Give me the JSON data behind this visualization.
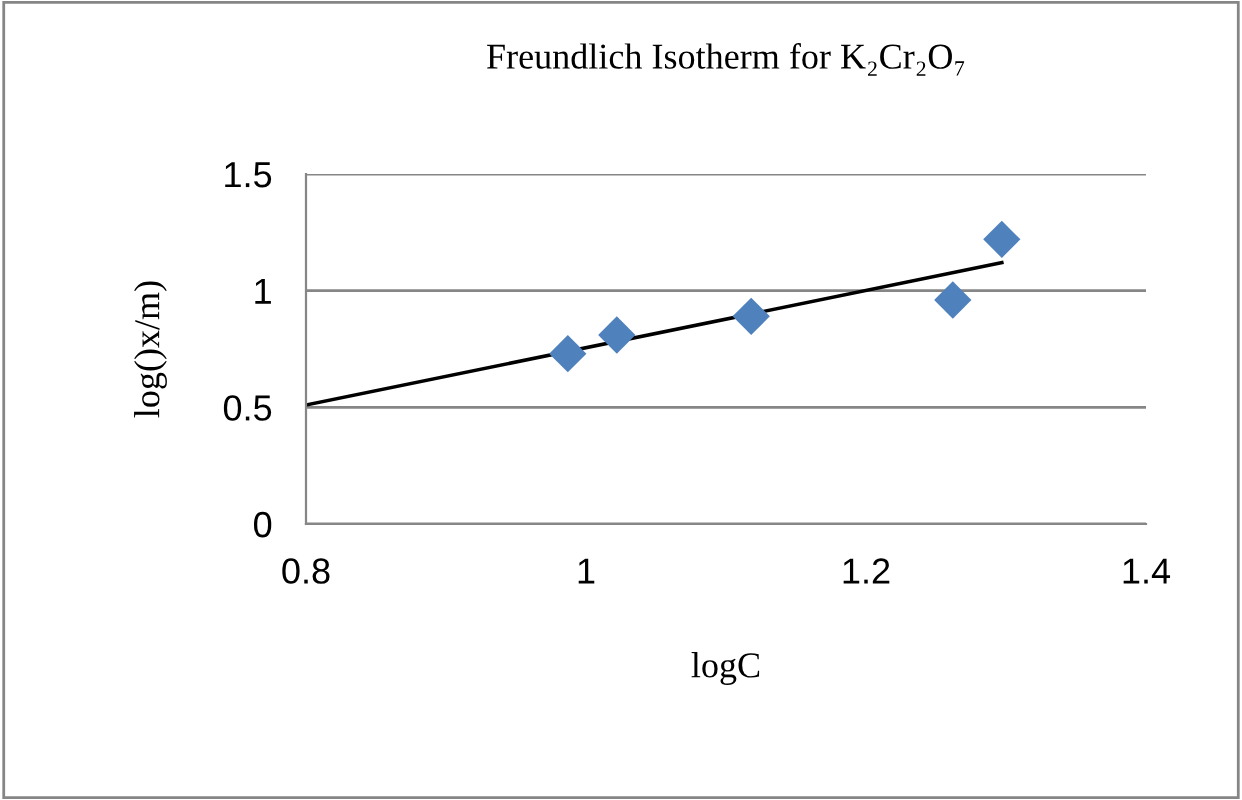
{
  "chart_data": {
    "type": "scatter",
    "title": "Freundlich Isotherm for K₂Cr₂O₇",
    "xlabel": "logC",
    "ylabel": "log()x/m)",
    "x": [
      0.987,
      1.022,
      1.118,
      1.262,
      1.297
    ],
    "series": [
      {
        "color": "#4f81bd",
        "marker": "diamond",
        "values": [
          0.73,
          0.81,
          0.89,
          0.96,
          1.22
        ]
      },
      {
        "type": "line",
        "color": "#000000",
        "x": [
          0.8,
          1.297
        ],
        "values": [
          0.51,
          1.12
        ],
        "marker": "none",
        "line_style": "solid"
      }
    ],
    "xlim": [
      0.8,
      1.4
    ],
    "xticks": [
      0.8,
      1,
      1.2,
      1.4
    ],
    "ylim": [
      0,
      1.5
    ],
    "yticks": [
      0,
      0.5,
      1,
      1.5
    ],
    "grid": "y",
    "legend": false
  }
}
